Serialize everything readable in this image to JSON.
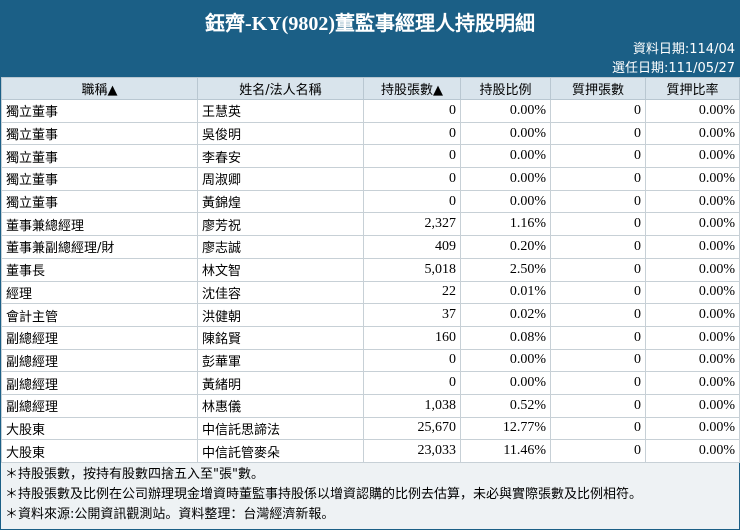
{
  "header": {
    "title": "鈺齊-KY(9802)董監事經理人持股明細",
    "data_date": "資料日期:114/04",
    "elect_date": "選任日期:111/05/27"
  },
  "table": {
    "headers": [
      "職稱▲",
      "姓名/法人名稱",
      "持股張數▲",
      "持股比例",
      "質押張數",
      "質押比率"
    ],
    "rows": [
      [
        "獨立董事",
        "王慧英",
        "0",
        "0.00%",
        "0",
        "0.00%"
      ],
      [
        "獨立董事",
        "吳俊明",
        "0",
        "0.00%",
        "0",
        "0.00%"
      ],
      [
        "獨立董事",
        "李春安",
        "0",
        "0.00%",
        "0",
        "0.00%"
      ],
      [
        "獨立董事",
        "周淑卿",
        "0",
        "0.00%",
        "0",
        "0.00%"
      ],
      [
        "獨立董事",
        "黃錦煌",
        "0",
        "0.00%",
        "0",
        "0.00%"
      ],
      [
        "董事兼總經理",
        "廖芳祝",
        "2,327",
        "1.16%",
        "0",
        "0.00%"
      ],
      [
        "董事兼副總經理/財",
        "廖志誠",
        "409",
        "0.20%",
        "0",
        "0.00%"
      ],
      [
        "董事長",
        "林文智",
        "5,018",
        "2.50%",
        "0",
        "0.00%"
      ],
      [
        "經理",
        "沈佳容",
        "22",
        "0.01%",
        "0",
        "0.00%"
      ],
      [
        "會計主管",
        "洪健朝",
        "37",
        "0.02%",
        "0",
        "0.00%"
      ],
      [
        "副總經理",
        "陳銘賢",
        "160",
        "0.08%",
        "0",
        "0.00%"
      ],
      [
        "副總經理",
        "彭華軍",
        "0",
        "0.00%",
        "0",
        "0.00%"
      ],
      [
        "副總經理",
        "黃緒明",
        "0",
        "0.00%",
        "0",
        "0.00%"
      ],
      [
        "副總經理",
        "林惠儀",
        "1,038",
        "0.52%",
        "0",
        "0.00%"
      ],
      [
        "大股東",
        "中信託思諦法",
        "25,670",
        "12.77%",
        "0",
        "0.00%"
      ],
      [
        "大股東",
        "中信託管麥朵",
        "23,033",
        "11.46%",
        "0",
        "0.00%"
      ]
    ]
  },
  "notes": [
    "＊持股張數，按持有股數四捨五入至\"張\"數。",
    "＊持股張數及比例在公司辦理現金增資時董監事持股係以增資認購的比例去估算，未必與實際張數及比例相符。",
    "＊資料來源:公開資訊觀測站。資料整理：台灣經濟新報。"
  ]
}
